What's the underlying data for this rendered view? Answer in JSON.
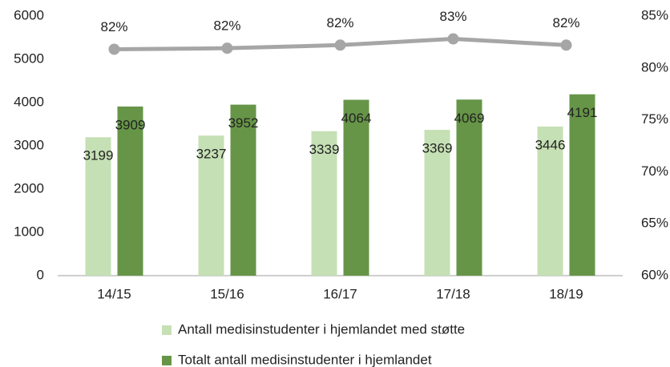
{
  "chart_data": {
    "type": "bar",
    "categories": [
      "14/15",
      "15/16",
      "16/17",
      "17/18",
      "18/19"
    ],
    "series": [
      {
        "name": "Antall medisinstudenter i hjemlandet med støtte",
        "color": "#c5e0b4",
        "values": [
          3199,
          3237,
          3339,
          3369,
          3446
        ]
      },
      {
        "name": "Totalt antall medisinstudenter i hjemlandet",
        "color": "#669547",
        "values": [
          3909,
          3952,
          4064,
          4069,
          4191
        ]
      },
      {
        "type": "line",
        "axis": "y2",
        "color": "#a6a6a6",
        "values": [
          81.8,
          81.9,
          82.2,
          82.8,
          82.2
        ],
        "value_labels": [
          "82%",
          "82%",
          "82%",
          "83%",
          "82%"
        ]
      }
    ],
    "ylim": [
      0,
      6000
    ],
    "yticks": [
      0,
      1000,
      2000,
      3000,
      4000,
      5000,
      6000
    ],
    "y2lim": [
      60,
      85
    ],
    "y2ticks": [
      {
        "value": 60,
        "label": "60%"
      },
      {
        "value": 65,
        "label": "65%"
      },
      {
        "value": 70,
        "label": "70%"
      },
      {
        "value": 75,
        "label": "75%"
      },
      {
        "value": 80,
        "label": "80%"
      },
      {
        "value": 85,
        "label": "85%"
      }
    ],
    "legend": "bottom",
    "grid": false
  }
}
